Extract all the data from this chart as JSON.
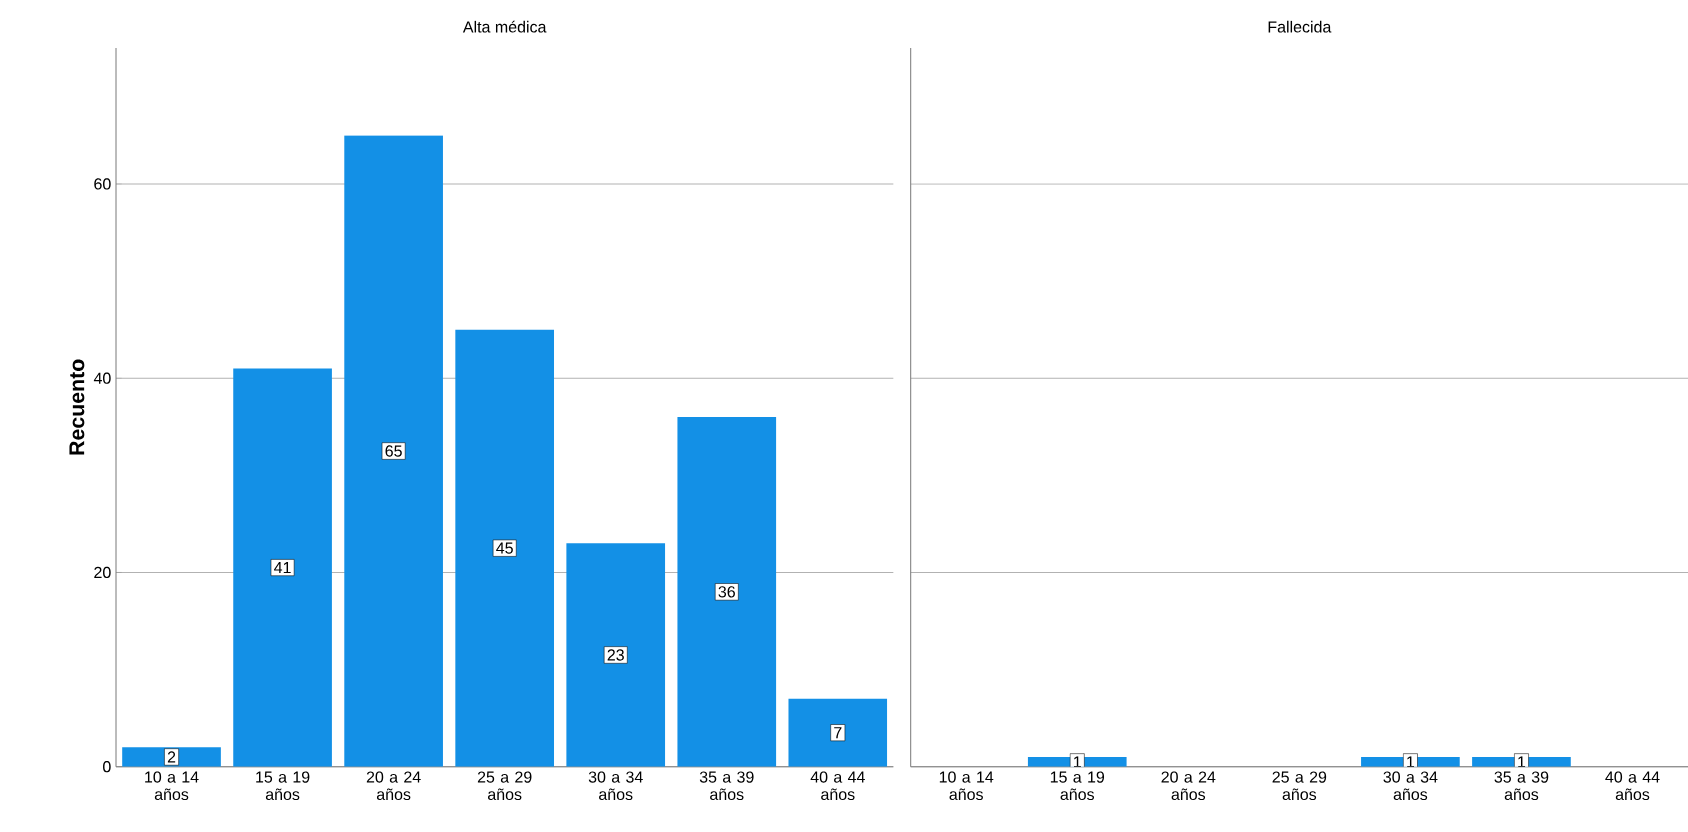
{
  "chart_data": [
    {
      "type": "bar",
      "title": "Alta médica",
      "ylabel": "Recuento",
      "categories": [
        "10 a 14 años",
        "15 a 19 años",
        "20 a 24 años",
        "25 a 29 años",
        "30 a 34 años",
        "35 a 39 años",
        "40 a 44 años"
      ],
      "values": [
        2,
        41,
        65,
        45,
        23,
        36,
        7
      ],
      "color": "#1390e6",
      "data_labels": true,
      "ylim": [
        0,
        74
      ],
      "yticks": [
        0,
        20,
        40,
        60
      ],
      "grid": "y"
    },
    {
      "type": "bar",
      "title": "Fallecida",
      "categories": [
        "10 a 14 años",
        "15 a 19 años",
        "20 a 24 años",
        "25 a 29 años",
        "30 a 34 años",
        "35 a 39 años",
        "40 a 44 años"
      ],
      "values": [
        0,
        1,
        0,
        0,
        1,
        1,
        0
      ],
      "value_labels": [
        null,
        "1",
        null,
        null,
        "1",
        "1",
        null
      ],
      "color": "#1390e6",
      "ylim": [
        0,
        74
      ],
      "yticks": [
        0,
        20,
        40,
        60
      ],
      "grid": "y",
      "tick_labels": "x"
    }
  ]
}
